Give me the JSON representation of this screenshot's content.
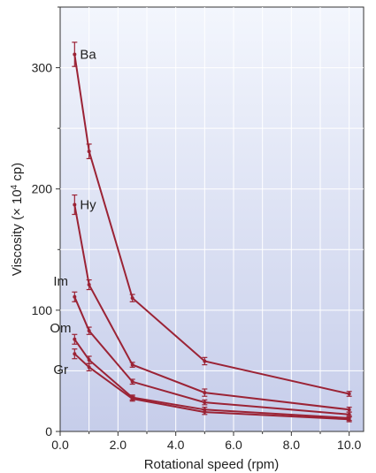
{
  "chart_data": {
    "type": "line",
    "xlabel": "Rotational speed (rpm)",
    "ylabel_prefix": "Viscosity (× 10",
    "ylabel_sup": "4",
    "ylabel_suffix": " cp)",
    "xlim": [
      0.0,
      10.5
    ],
    "ylim": [
      0,
      350
    ],
    "x_ticks": [
      0.0,
      2.0,
      4.0,
      6.0,
      8.0,
      10.0
    ],
    "x_tick_labels": [
      "0.0",
      "2.0",
      "4.0",
      "6.0",
      "8.0",
      "10.0"
    ],
    "y_ticks": [
      0,
      100,
      200,
      300
    ],
    "y_tick_labels": [
      "0",
      "100",
      "200",
      "300"
    ],
    "grid": true,
    "line_color": "#9b2335",
    "x": [
      0.5,
      1.0,
      2.5,
      5.0,
      10.0
    ],
    "series": [
      {
        "name": "Ba",
        "values": [
          311,
          231,
          110,
          58,
          31
        ],
        "errors": [
          10,
          6,
          3,
          3,
          2
        ]
      },
      {
        "name": "Hy",
        "values": [
          187,
          121,
          55,
          32,
          18
        ],
        "errors": [
          8,
          4,
          2,
          3,
          2
        ]
      },
      {
        "name": "Im",
        "values": [
          111,
          83,
          41,
          24,
          14
        ],
        "errors": [
          4,
          3,
          2,
          2,
          2
        ]
      },
      {
        "name": "Om",
        "values": [
          76,
          59,
          28,
          18,
          11
        ],
        "errors": [
          4,
          3,
          2,
          2,
          2
        ]
      },
      {
        "name": "Gr",
        "values": [
          64,
          53,
          27,
          16,
          10
        ],
        "errors": [
          4,
          3,
          2,
          2,
          2
        ]
      }
    ]
  }
}
